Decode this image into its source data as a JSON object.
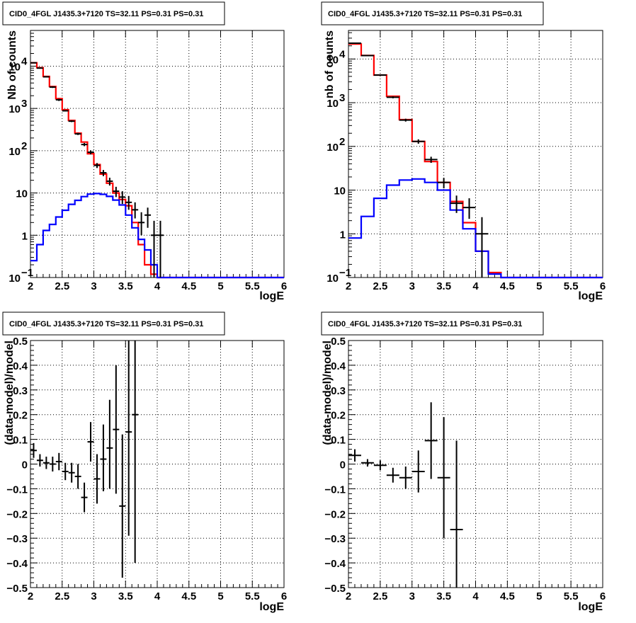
{
  "chart_data": [
    {
      "type": "line",
      "title": "CID0_4FGL J1435.3+7120 TS=32.11 PS=0.31 PS=0.31",
      "xlabel": "logE",
      "ylabel": "Nb of counts",
      "log_y": true,
      "xlim": [
        2,
        6
      ],
      "ylim": [
        0.1,
        70000
      ],
      "grid": true,
      "x_ticks": [
        "2",
        "2.5",
        "3",
        "3.5",
        "4",
        "4.5",
        "5",
        "5.5",
        "6"
      ],
      "y_ticks": [
        {
          "v": 0.1,
          "t": "10",
          "e": "−1"
        },
        {
          "v": 1,
          "t": "1"
        },
        {
          "v": 10,
          "t": "10"
        },
        {
          "v": 100,
          "t": "10",
          "e": "2"
        },
        {
          "v": 1000,
          "t": "10",
          "e": "3"
        },
        {
          "v": 10000,
          "t": "10",
          "e": "4"
        }
      ],
      "bin_edges": [
        2,
        2.1,
        2.2,
        2.3,
        2.4,
        2.5,
        2.6,
        2.7,
        2.8,
        2.9,
        3,
        3.1,
        3.2,
        3.3,
        3.4,
        3.5,
        3.6,
        3.7,
        3.8,
        3.9,
        4,
        4.1,
        4.2,
        4.3,
        4.4,
        4.5,
        4.6,
        4.7,
        4.8,
        4.9,
        5,
        5.1,
        5.2,
        5.3,
        5.4,
        5.5,
        5.6,
        5.7,
        5.8,
        5.9,
        6
      ],
      "series": [
        {
          "name": "",
          "color": "#ff0000",
          "style": "step",
          "values": [
            12000,
            9200,
            5700,
            3300,
            1700,
            930,
            520,
            260,
            160,
            85,
            47,
            28,
            17,
            10,
            7,
            5,
            2,
            0.6,
            0.2,
            0.12,
            0.1,
            0.1,
            0.1,
            0.1,
            0.1,
            0.1,
            0.1,
            0.1,
            0.1,
            0.1,
            0.1,
            0.1,
            0.1,
            0.1,
            0.1,
            0.1,
            0.1,
            0.1,
            0.1,
            0.1
          ]
        },
        {
          "name": "",
          "color": "#0000ff",
          "style": "step",
          "values": [
            0.25,
            0.6,
            1.3,
            1.8,
            2.7,
            3.9,
            5.4,
            6.7,
            8.2,
            9.4,
            9.7,
            9.3,
            8.3,
            6.8,
            5.2,
            3,
            1.5,
            0.8,
            0.45,
            0.2,
            0.1,
            0.1,
            0.1,
            0.1,
            0.1,
            0.1,
            0.1,
            0.1,
            0.1,
            0.1,
            0.1,
            0.1,
            0.1,
            0.1,
            0.1,
            0.1,
            0.1,
            0.1,
            0.1,
            0.1
          ]
        },
        {
          "name": "",
          "color": "#000000",
          "style": "points",
          "points": [
            {
              "x": 2.05,
              "y": 12000,
              "lo": 11700,
              "hi": 12400
            },
            {
              "x": 2.15,
              "y": 9000,
              "lo": 8700,
              "hi": 9300
            },
            {
              "x": 2.25,
              "y": 5600,
              "lo": 5400,
              "hi": 5800
            },
            {
              "x": 2.35,
              "y": 3200,
              "lo": 3050,
              "hi": 3350
            },
            {
              "x": 2.45,
              "y": 1600,
              "lo": 1500,
              "hi": 1700
            },
            {
              "x": 2.55,
              "y": 880,
              "lo": 850,
              "hi": 910
            },
            {
              "x": 2.65,
              "y": 500,
              "lo": 475,
              "hi": 525
            },
            {
              "x": 2.75,
              "y": 250,
              "lo": 235,
              "hi": 265
            },
            {
              "x": 2.85,
              "y": 140,
              "lo": 128,
              "hi": 152
            },
            {
              "x": 2.95,
              "y": 92,
              "lo": 82,
              "hi": 102
            },
            {
              "x": 3.05,
              "y": 45,
              "lo": 39,
              "hi": 51
            },
            {
              "x": 3.15,
              "y": 30,
              "lo": 25,
              "hi": 35
            },
            {
              "x": 3.25,
              "y": 19,
              "lo": 15,
              "hi": 23
            },
            {
              "x": 3.35,
              "y": 11,
              "lo": 8,
              "hi": 14
            },
            {
              "x": 3.45,
              "y": 8,
              "lo": 5.5,
              "hi": 11
            },
            {
              "x": 3.55,
              "y": 6,
              "lo": 4,
              "hi": 8.5
            },
            {
              "x": 3.65,
              "y": 4,
              "lo": 2.5,
              "hi": 6
            },
            {
              "x": 3.75,
              "y": 2,
              "lo": 1,
              "hi": 3.5
            },
            {
              "x": 3.85,
              "y": 3,
              "lo": 1.5,
              "hi": 4.5
            },
            {
              "x": 3.95,
              "y": 1,
              "lo": 0.1,
              "hi": 2.2
            },
            {
              "x": 4.05,
              "y": 1,
              "lo": 0.1,
              "hi": 2.2
            }
          ]
        }
      ]
    },
    {
      "type": "line",
      "title": "CID0_4FGL J1435.3+7120 TS=32.11 PS=0.31 PS=0.31",
      "xlabel": "logE",
      "ylabel": "nb of counts",
      "log_y": true,
      "xlim": [
        2,
        6
      ],
      "ylim": [
        0.1,
        45000
      ],
      "grid": true,
      "x_ticks": [
        "2",
        "2.5",
        "3",
        "3.5",
        "4",
        "4.5",
        "5",
        "5.5",
        "6"
      ],
      "y_ticks": [
        {
          "v": 0.1,
          "t": "10",
          "e": "−1"
        },
        {
          "v": 1,
          "t": "1"
        },
        {
          "v": 10,
          "t": "10"
        },
        {
          "v": 100,
          "t": "10",
          "e": "2"
        },
        {
          "v": 1000,
          "t": "10",
          "e": "3"
        },
        {
          "v": 10000,
          "t": "10",
          "e": "4"
        }
      ],
      "bin_edges": [
        2,
        2.2,
        2.4,
        2.6,
        2.8,
        3,
        3.2,
        3.4,
        3.6,
        3.8,
        4,
        4.2,
        4.4,
        4.6,
        4.8,
        5,
        5.2,
        5.4,
        5.6,
        5.8,
        6
      ],
      "series": [
        {
          "name": "",
          "color": "#ff0000",
          "style": "step",
          "values": [
            22000,
            12000,
            4300,
            1400,
            410,
            130,
            45,
            15,
            5.5,
            1.8,
            0.4,
            0.13,
            0.1,
            0.1,
            0.1,
            0.1,
            0.1,
            0.1,
            0.1,
            0.1
          ]
        },
        {
          "name": "",
          "color": "#0000ff",
          "style": "step",
          "values": [
            0.8,
            2.5,
            6.5,
            13,
            17,
            18,
            15,
            10,
            3.5,
            1.3,
            0.4,
            0.12,
            0.1,
            0.1,
            0.1,
            0.1,
            0.1,
            0.1,
            0.1,
            0.1
          ]
        },
        {
          "name": "",
          "color": "#000000",
          "style": "points",
          "points": [
            {
              "x": 2.1,
              "y": 23000,
              "lo": 22500,
              "hi": 23500
            },
            {
              "x": 2.3,
              "y": 12000,
              "lo": 11700,
              "hi": 12300
            },
            {
              "x": 2.5,
              "y": 4300,
              "lo": 4150,
              "hi": 4450
            },
            {
              "x": 2.7,
              "y": 1330,
              "lo": 1260,
              "hi": 1400
            },
            {
              "x": 2.9,
              "y": 400,
              "lo": 370,
              "hi": 430
            },
            {
              "x": 3.1,
              "y": 130,
              "lo": 115,
              "hi": 145
            },
            {
              "x": 3.3,
              "y": 50,
              "lo": 42,
              "hi": 58
            },
            {
              "x": 3.5,
              "y": 15,
              "lo": 11,
              "hi": 19
            },
            {
              "x": 3.7,
              "y": 5,
              "lo": 3,
              "hi": 7.5
            },
            {
              "x": 3.9,
              "y": 4,
              "lo": 2.2,
              "hi": 6.5
            },
            {
              "x": 4.1,
              "y": 1,
              "lo": 0.1,
              "hi": 2.4
            }
          ]
        }
      ]
    },
    {
      "type": "scatter",
      "title": "CID0_4FGL J1435.3+7120 TS=32.11 PS=0.31 PS=0.31",
      "xlabel": "logE",
      "ylabel": "(data-model)/model",
      "log_y": false,
      "xlim": [
        2,
        6
      ],
      "ylim": [
        -0.5,
        0.5
      ],
      "grid": true,
      "x_ticks": [
        "2",
        "2.5",
        "3",
        "3.5",
        "4",
        "4.5",
        "5",
        "5.5",
        "6"
      ],
      "y_ticks": [
        "−0.5",
        "−0.4",
        "−0.3",
        "−0.2",
        "−0.1",
        "0",
        "0.1",
        "0.2",
        "0.3",
        "0.4",
        "0.5"
      ],
      "series": [
        {
          "name": "",
          "color": "#000000",
          "style": "points",
          "xerr": 0.05,
          "points": [
            {
              "x": 2.05,
              "y": 0.055,
              "lo": 0.025,
              "hi": 0.085
            },
            {
              "x": 2.15,
              "y": 0.015,
              "lo": -0.01,
              "hi": 0.04
            },
            {
              "x": 2.25,
              "y": 0.005,
              "lo": -0.02,
              "hi": 0.03
            },
            {
              "x": 2.35,
              "y": 0.0,
              "lo": -0.03,
              "hi": 0.03
            },
            {
              "x": 2.45,
              "y": 0.01,
              "lo": -0.025,
              "hi": 0.045
            },
            {
              "x": 2.55,
              "y": -0.03,
              "lo": -0.065,
              "hi": 0.005
            },
            {
              "x": 2.65,
              "y": -0.035,
              "lo": -0.075,
              "hi": 0.005
            },
            {
              "x": 2.75,
              "y": -0.05,
              "lo": -0.1,
              "hi": 0.0
            },
            {
              "x": 2.85,
              "y": -0.135,
              "lo": -0.195,
              "hi": -0.075
            },
            {
              "x": 2.95,
              "y": 0.09,
              "lo": 0.01,
              "hi": 0.17
            },
            {
              "x": 3.05,
              "y": -0.06,
              "lo": -0.16,
              "hi": 0.04
            },
            {
              "x": 3.15,
              "y": 0.02,
              "lo": -0.11,
              "hi": 0.16
            },
            {
              "x": 3.25,
              "y": 0.065,
              "lo": -0.1,
              "hi": 0.26
            },
            {
              "x": 3.35,
              "y": 0.14,
              "lo": -0.12,
              "hi": 0.4
            },
            {
              "x": 3.45,
              "y": -0.17,
              "lo": -0.46,
              "hi": 0.12
            },
            {
              "x": 3.55,
              "y": 0.13,
              "lo": -0.29,
              "hi": 0.5
            },
            {
              "x": 3.65,
              "y": 0.2,
              "lo": -0.4,
              "hi": 0.5
            }
          ]
        }
      ]
    },
    {
      "type": "scatter",
      "title": "CID0_4FGL J1435.3+7120 TS=32.11 PS=0.31 PS=0.31",
      "xlabel": "logE",
      "ylabel": "(data-model)/model",
      "log_y": false,
      "xlim": [
        2,
        6
      ],
      "ylim": [
        -0.5,
        0.5
      ],
      "grid": true,
      "x_ticks": [
        "2",
        "2.5",
        "3",
        "3.5",
        "4",
        "4.5",
        "5",
        "5.5",
        "6"
      ],
      "y_ticks": [
        "−0.5",
        "−0.4",
        "−0.3",
        "−0.2",
        "−0.1",
        "0",
        "0.1",
        "0.2",
        "0.3",
        "0.4",
        "0.5"
      ],
      "series": [
        {
          "name": "",
          "color": "#000000",
          "style": "points",
          "xerr": 0.1,
          "points": [
            {
              "x": 2.1,
              "y": 0.035,
              "lo": 0.01,
              "hi": 0.06
            },
            {
              "x": 2.3,
              "y": 0.005,
              "lo": -0.01,
              "hi": 0.02
            },
            {
              "x": 2.5,
              "y": -0.005,
              "lo": -0.025,
              "hi": 0.015
            },
            {
              "x": 2.7,
              "y": -0.045,
              "lo": -0.075,
              "hi": -0.015
            },
            {
              "x": 2.9,
              "y": -0.055,
              "lo": -0.1,
              "hi": -0.01
            },
            {
              "x": 3.1,
              "y": -0.03,
              "lo": -0.115,
              "hi": 0.055
            },
            {
              "x": 3.3,
              "y": 0.095,
              "lo": -0.06,
              "hi": 0.25
            },
            {
              "x": 3.5,
              "y": -0.055,
              "lo": -0.3,
              "hi": 0.19
            },
            {
              "x": 3.7,
              "y": -0.265,
              "lo": -0.5,
              "hi": 0.095
            }
          ]
        }
      ]
    }
  ]
}
